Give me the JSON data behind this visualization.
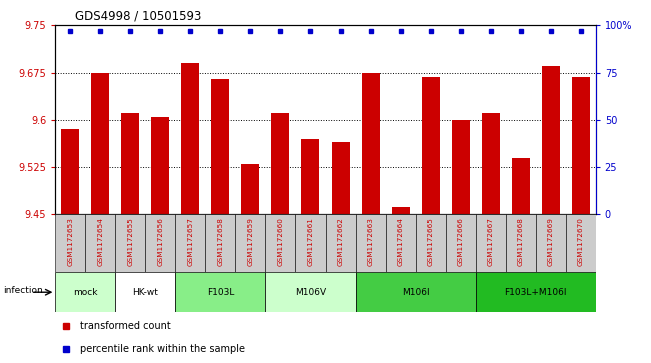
{
  "title": "GDS4998 / 10501593",
  "samples": [
    "GSM1172653",
    "GSM1172654",
    "GSM1172655",
    "GSM1172656",
    "GSM1172657",
    "GSM1172658",
    "GSM1172659",
    "GSM1172660",
    "GSM1172661",
    "GSM1172662",
    "GSM1172663",
    "GSM1172664",
    "GSM1172665",
    "GSM1172666",
    "GSM1172667",
    "GSM1172668",
    "GSM1172669",
    "GSM1172670"
  ],
  "bar_values": [
    9.585,
    9.675,
    9.61,
    9.605,
    9.69,
    9.665,
    9.53,
    9.61,
    9.57,
    9.565,
    9.675,
    9.462,
    9.668,
    9.6,
    9.61,
    9.54,
    9.685,
    9.668
  ],
  "percentile_values": [
    97,
    97,
    97,
    97,
    97,
    97,
    97,
    97,
    97,
    97,
    97,
    97,
    97,
    97,
    97,
    97,
    97,
    97
  ],
  "ylim_left": [
    9.45,
    9.75
  ],
  "ylim_right": [
    0,
    100
  ],
  "yticks_left": [
    9.45,
    9.525,
    9.6,
    9.675,
    9.75
  ],
  "yticks_left_labels": [
    "9.45",
    "9.525",
    "9.6",
    "9.675",
    "9.75"
  ],
  "yticks_right": [
    0,
    25,
    50,
    75,
    100
  ],
  "yticks_right_labels": [
    "0",
    "25",
    "50",
    "75",
    "100%"
  ],
  "dotted_lines": [
    9.525,
    9.6,
    9.675
  ],
  "bar_color": "#cc0000",
  "percentile_color": "#0000cc",
  "groups": [
    {
      "label": "mock",
      "start": 0,
      "end": 2,
      "color": "#ccffcc"
    },
    {
      "label": "HK-wt",
      "start": 2,
      "end": 4,
      "color": "#ffffff"
    },
    {
      "label": "F103L",
      "start": 4,
      "end": 7,
      "color": "#88ee88"
    },
    {
      "label": "M106V",
      "start": 7,
      "end": 10,
      "color": "#ccffcc"
    },
    {
      "label": "M106I",
      "start": 10,
      "end": 14,
      "color": "#44cc44"
    },
    {
      "label": "F103L+M106I",
      "start": 14,
      "end": 18,
      "color": "#22bb22"
    }
  ],
  "infection_label": "infection",
  "legend_bar_label": "transformed count",
  "legend_dot_label": "percentile rank within the sample",
  "bar_width": 0.6,
  "sample_bg_color": "#cccccc"
}
